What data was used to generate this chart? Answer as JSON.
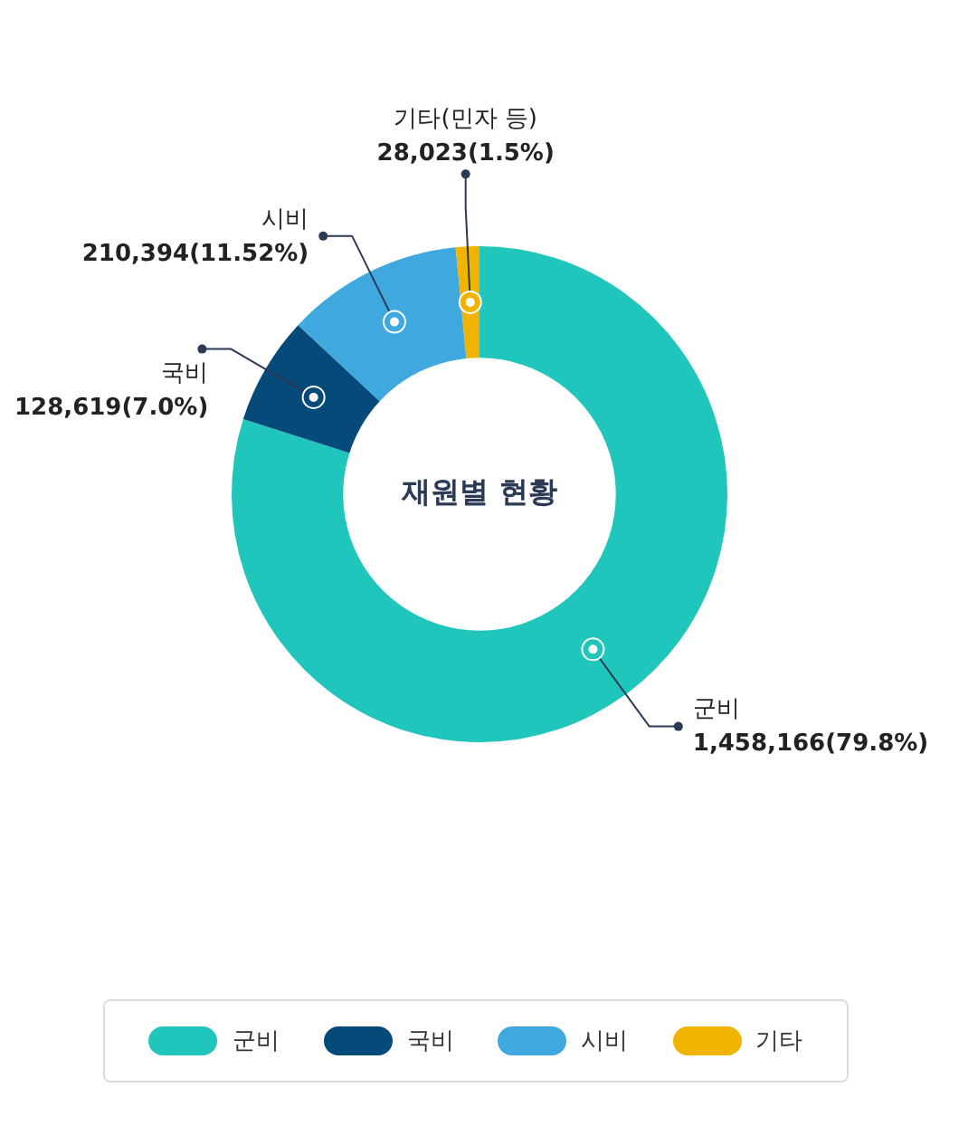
{
  "chart_data": {
    "type": "donut",
    "title": "재원별 현황",
    "categories": [
      "군비",
      "국비",
      "시비",
      "기타"
    ],
    "values": [
      1458166,
      128619,
      210394,
      28023
    ],
    "colors": [
      "#20c5bb",
      "#064a7a",
      "#3fa9df",
      "#f0b400"
    ],
    "value_labels": [
      "1,458,166(79.8%)",
      "128,619(7.0%)",
      "210,394(11.52%)",
      "28,023(1.5%)"
    ],
    "annotations": [
      {
        "text": "기타(민자 등)",
        "x": "기타"
      }
    ],
    "legend": "bottom"
  }
}
